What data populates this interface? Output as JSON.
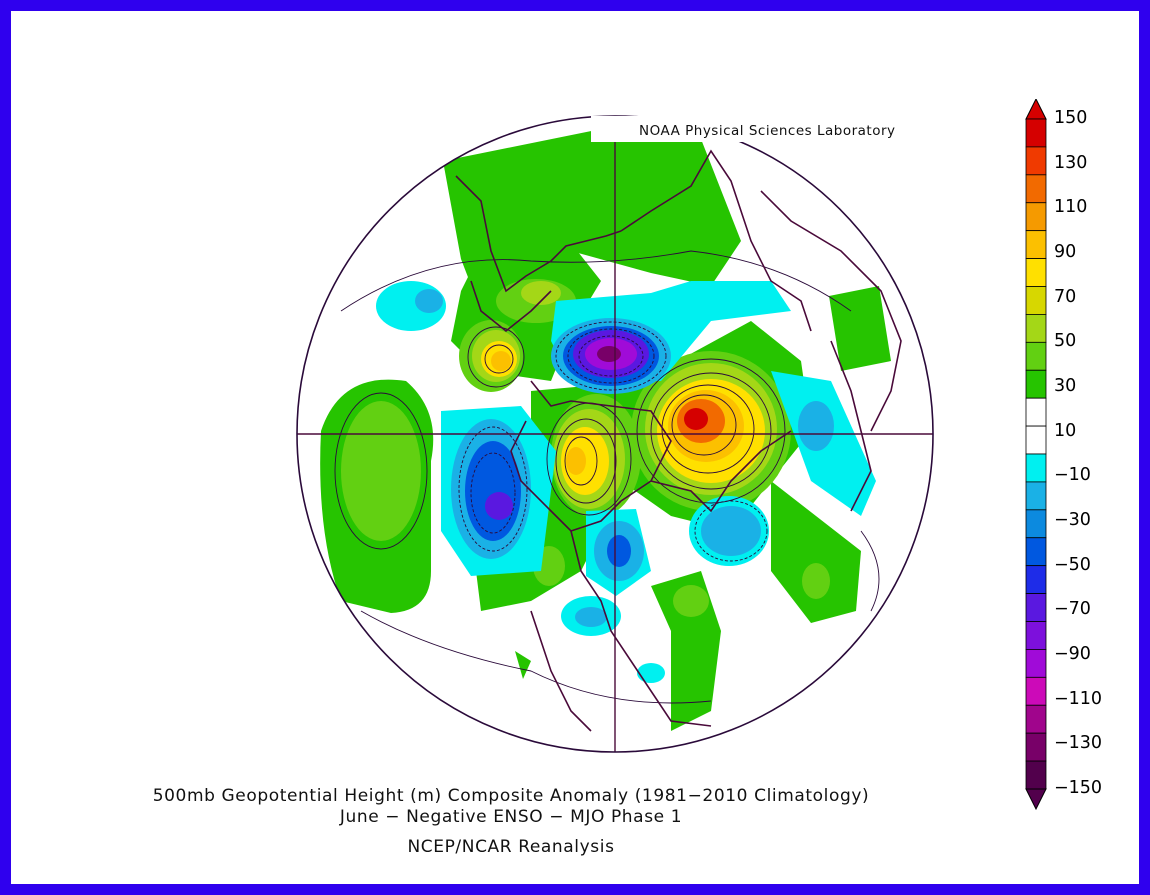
{
  "credit": "NOAA Physical Sciences Laboratory",
  "title_line1": "500mb Geopotential Height (m) Composite Anomaly (1981−2010 Climatology)",
  "title_line2": "June − Negative ENSO − MJO Phase 1",
  "title_line3": "NCEP/NCAR Reanalysis",
  "colorbar": {
    "ticks": [
      "150",
      "130",
      "110",
      "90",
      "70",
      "50",
      "30",
      "10",
      "−10",
      "−30",
      "−50",
      "−70",
      "−90",
      "−110",
      "−130",
      "−150"
    ],
    "colors": [
      "#d50000",
      "#f03a00",
      "#f26a00",
      "#f59a00",
      "#fcc000",
      "#ffe000",
      "#d7d700",
      "#a4d717",
      "#62d012",
      "#26c400",
      "#ffffff",
      "#ffffff",
      "#00f0f0",
      "#1ab1e6",
      "#0c8adf",
      "#0058e0",
      "#1e2ce8",
      "#5a18e0",
      "#7d10dc",
      "#a00bd8",
      "#cc0ab8",
      "#a0058c",
      "#780068",
      "#52004c"
    ]
  },
  "colors": {
    "frame": "#2f00ee",
    "coast": "#4a0a3a"
  },
  "icons": {
    "arrow_up": "colorbar-max-arrow",
    "arrow_down": "colorbar-min-arrow"
  }
}
